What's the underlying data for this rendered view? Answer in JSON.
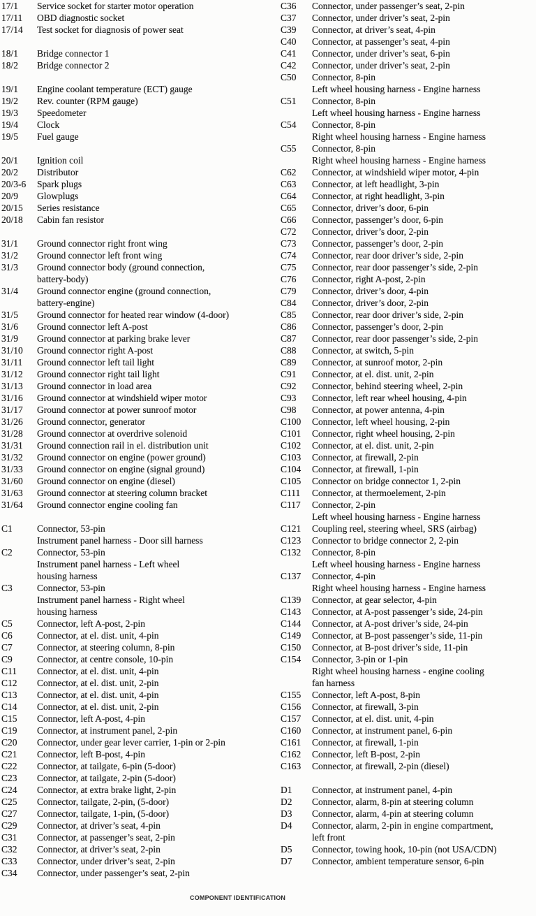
{
  "footer": {
    "title": "COMPONENT IDENTIFICATION"
  },
  "columns": [
    {
      "name": "left",
      "entries": [
        {
          "code": "17/1",
          "lines": [
            "Service socket for starter motor operation"
          ]
        },
        {
          "code": "17/11",
          "lines": [
            "OBD diagnostic socket"
          ]
        },
        {
          "code": "17/14",
          "lines": [
            "Test socket for diagnosis of power seat"
          ]
        },
        {
          "code": "18/1",
          "gap": true,
          "lines": [
            "Bridge connector 1"
          ]
        },
        {
          "code": "18/2",
          "lines": [
            "Bridge connector 2"
          ]
        },
        {
          "code": "19/1",
          "gap": true,
          "lines": [
            "Engine coolant temperature (ECT) gauge"
          ]
        },
        {
          "code": "19/2",
          "lines": [
            "Rev. counter (RPM gauge)"
          ]
        },
        {
          "code": "19/3",
          "lines": [
            "Speedometer"
          ]
        },
        {
          "code": "19/4",
          "lines": [
            "Clock"
          ]
        },
        {
          "code": "19/5",
          "lines": [
            "Fuel gauge"
          ]
        },
        {
          "code": "20/1",
          "gap": true,
          "lines": [
            "Ignition coil"
          ]
        },
        {
          "code": "20/2",
          "lines": [
            "Distributor"
          ]
        },
        {
          "code": "20/3-6",
          "lines": [
            "Spark plugs"
          ]
        },
        {
          "code": "20/9",
          "lines": [
            "Glowplugs"
          ]
        },
        {
          "code": "20/15",
          "lines": [
            "Series resistance"
          ]
        },
        {
          "code": "20/18",
          "lines": [
            "Cabin fan resistor"
          ]
        },
        {
          "code": "31/1",
          "gap": true,
          "lines": [
            "Ground connector right front wing"
          ]
        },
        {
          "code": "31/2",
          "lines": [
            "Ground connector left front wing"
          ]
        },
        {
          "code": "31/3",
          "lines": [
            "Ground connector body (ground connection,",
            "battery-body)"
          ]
        },
        {
          "code": "31/4",
          "lines": [
            "Ground connector engine (ground connection,",
            "battery-engine)"
          ]
        },
        {
          "code": "31/5",
          "lines": [
            "Ground connector for heated rear window (4-door)"
          ]
        },
        {
          "code": "31/6",
          "lines": [
            "Ground connector left A-post"
          ]
        },
        {
          "code": "31/9",
          "lines": [
            "Ground connector at parking brake lever"
          ]
        },
        {
          "code": "31/10",
          "lines": [
            "Ground connector right A-post"
          ]
        },
        {
          "code": "31/11",
          "lines": [
            "Ground connector left tail light"
          ]
        },
        {
          "code": "31/12",
          "lines": [
            "Ground connector right tail light"
          ]
        },
        {
          "code": "31/13",
          "lines": [
            "Ground connector in load area"
          ]
        },
        {
          "code": "31/16",
          "lines": [
            "Ground connector at windshield wiper motor"
          ]
        },
        {
          "code": "31/17",
          "lines": [
            "Ground connector at power sunroof motor"
          ]
        },
        {
          "code": "31/26",
          "lines": [
            "Ground connector, generator"
          ]
        },
        {
          "code": "31/28",
          "lines": [
            "Ground connector at overdrive solenoid"
          ]
        },
        {
          "code": "31/31",
          "lines": [
            "Ground connection rail in el. distribution unit"
          ]
        },
        {
          "code": "31/32",
          "lines": [
            "Ground connector on engine (power ground)"
          ]
        },
        {
          "code": "31/33",
          "lines": [
            "Ground connector on engine (signal ground)"
          ]
        },
        {
          "code": "31/60",
          "lines": [
            "Ground connector on engine (diesel)"
          ]
        },
        {
          "code": "31/63",
          "lines": [
            "Ground connector at steering column bracket"
          ]
        },
        {
          "code": "31/64",
          "lines": [
            "Ground connector engine cooling fan"
          ]
        },
        {
          "code": "C1",
          "gap": true,
          "lines": [
            "Connector, 53-pin",
            "Instrument panel harness - Door sill harness"
          ]
        },
        {
          "code": "C2",
          "lines": [
            "Connector, 53-pin",
            "Instrument panel harness - Left wheel",
            "housing harness"
          ]
        },
        {
          "code": "C3",
          "lines": [
            "Connector, 53-pin",
            "Instrument panel harness - Right wheel",
            "housing harness"
          ]
        },
        {
          "code": "C5",
          "lines": [
            "Connector, left A-post, 2-pin"
          ]
        },
        {
          "code": "C6",
          "lines": [
            "Connector, at el. dist. unit, 4-pin"
          ]
        },
        {
          "code": "C7",
          "lines": [
            "Connector, at steering column, 8-pin"
          ]
        },
        {
          "code": "C9",
          "lines": [
            "Connector, at centre console, 10-pin"
          ]
        },
        {
          "code": "C11",
          "lines": [
            "Connector, at el. dist. unit, 4-pin"
          ]
        },
        {
          "code": "C12",
          "lines": [
            "Connector, at el. dist. unit, 2-pin"
          ]
        },
        {
          "code": "C13",
          "lines": [
            "Connector, at el. dist. unit, 4-pin"
          ]
        },
        {
          "code": "C14",
          "lines": [
            "Connector, at el. dist. unit, 2-pin"
          ]
        },
        {
          "code": "C15",
          "lines": [
            "Connector, left A-post, 4-pin"
          ]
        },
        {
          "code": "C19",
          "lines": [
            "Connector, at instrument panel, 2-pin"
          ]
        },
        {
          "code": "C20",
          "lines": [
            "Connector, under gear lever carrier, 1-pin or 2-pin"
          ]
        },
        {
          "code": "C21",
          "lines": [
            "Connector, left B-post, 4-pin"
          ]
        },
        {
          "code": "C22",
          "lines": [
            "Connector, at tailgate, 6-pin (5-door)"
          ]
        },
        {
          "code": "C23",
          "lines": [
            "Connector, at tailgate, 2-pin (5-door)"
          ]
        },
        {
          "code": "C24",
          "lines": [
            "Connector, at extra brake light, 2-pin"
          ]
        },
        {
          "code": "C25",
          "lines": [
            "Connector, tailgate, 2-pin, (5-door)"
          ]
        },
        {
          "code": "C27",
          "lines": [
            "Connector, tailgate, 1-pin, (5-door)"
          ]
        },
        {
          "code": "C29",
          "lines": [
            "Connector, at driver’s seat, 4-pin"
          ]
        },
        {
          "code": "C31",
          "lines": [
            "Connector, at passenger’s seat, 2-pin"
          ]
        },
        {
          "code": "C32",
          "lines": [
            "Connector, at driver’s seat, 2-pin"
          ]
        },
        {
          "code": "C33",
          "lines": [
            "Connector, under driver’s seat, 2-pin"
          ]
        },
        {
          "code": "C34",
          "lines": [
            "Connector, under passenger’s seat, 2-pin"
          ]
        }
      ]
    },
    {
      "name": "right",
      "entries": [
        {
          "code": "C36",
          "lines": [
            "Connector, under passenger’s seat, 2-pin"
          ]
        },
        {
          "code": "C37",
          "lines": [
            "Connector, under driver’s seat, 2-pin"
          ]
        },
        {
          "code": "C39",
          "lines": [
            "Connector, at driver’s seat, 4-pin"
          ]
        },
        {
          "code": "C40",
          "lines": [
            "Connector, at passenger’s seat, 4-pin"
          ]
        },
        {
          "code": "C41",
          "lines": [
            "Connector, under driver’s seat, 6-pin"
          ]
        },
        {
          "code": "C42",
          "lines": [
            "Connector, under driver’s seat, 2-pin"
          ]
        },
        {
          "code": "C50",
          "lines": [
            "Connector, 8-pin",
            "Left wheel housing harness - Engine harness"
          ]
        },
        {
          "code": "C51",
          "lines": [
            "Connector, 8-pin",
            "Left wheel housing harness - Engine harness"
          ]
        },
        {
          "code": "C54",
          "lines": [
            "Connector, 8-pin",
            "Right wheel housing harness - Engine harness"
          ]
        },
        {
          "code": "C55",
          "lines": [
            "Connector, 8-pin",
            "Right wheel housing harness - Engine harness"
          ]
        },
        {
          "code": "C62",
          "lines": [
            "Connector, at windshield wiper motor, 4-pin"
          ]
        },
        {
          "code": "C63",
          "lines": [
            "Connector, at left headlight, 3-pin"
          ]
        },
        {
          "code": "C64",
          "lines": [
            "Connector, at right headlight, 3-pin"
          ]
        },
        {
          "code": "C65",
          "lines": [
            "Connector, driver’s door, 6-pin"
          ]
        },
        {
          "code": "C66",
          "lines": [
            "Connector, passenger’s door, 6-pin"
          ]
        },
        {
          "code": "C72",
          "lines": [
            "Connector, driver’s door, 2-pin"
          ]
        },
        {
          "code": "C73",
          "lines": [
            "Connector, passenger’s door, 2-pin"
          ]
        },
        {
          "code": "C74",
          "lines": [
            "Connector, rear door driver’s side, 2-pin"
          ]
        },
        {
          "code": "C75",
          "lines": [
            "Connector, rear door passenger’s side, 2-pin"
          ]
        },
        {
          "code": "C76",
          "lines": [
            "Connector, right A-post, 2-pin"
          ]
        },
        {
          "code": "C79",
          "lines": [
            "Connector, driver’s door, 4-pin"
          ]
        },
        {
          "code": "C84",
          "lines": [
            "Connector, driver’s door, 2-pin"
          ]
        },
        {
          "code": "C85",
          "lines": [
            "Connector, rear door driver’s side, 2-pin"
          ]
        },
        {
          "code": "C86",
          "lines": [
            "Connector, passenger’s door, 2-pin"
          ]
        },
        {
          "code": "C87",
          "lines": [
            "Connector, rear door passenger’s side, 2-pin"
          ]
        },
        {
          "code": "C88",
          "lines": [
            "Connector, at switch, 5-pin"
          ]
        },
        {
          "code": "C89",
          "lines": [
            "Connector, at sunroof motor, 2-pin"
          ]
        },
        {
          "code": "C91",
          "lines": [
            "Connector, at el. dist. unit, 2-pin"
          ]
        },
        {
          "code": "C92",
          "lines": [
            "Connector, behind steering wheel, 2-pin"
          ]
        },
        {
          "code": "C93",
          "lines": [
            "Connector, left rear wheel housing, 4-pin"
          ]
        },
        {
          "code": "C98",
          "lines": [
            "Connector, at power antenna, 4-pin"
          ]
        },
        {
          "code": "C100",
          "lines": [
            "Connector, left wheel housing, 2-pin"
          ]
        },
        {
          "code": "C101",
          "lines": [
            "Connector, right wheel housing, 2-pin"
          ]
        },
        {
          "code": "C102",
          "lines": [
            "Connector, at el. dist. unit, 2-pin"
          ]
        },
        {
          "code": "C103",
          "lines": [
            "Connector, at firewall, 2-pin"
          ]
        },
        {
          "code": "C104",
          "lines": [
            "Connector, at firewall, 1-pin"
          ]
        },
        {
          "code": "C105",
          "lines": [
            "Connector on bridge connector 1, 2-pin"
          ]
        },
        {
          "code": "C111",
          "lines": [
            "Connector, at thermoelement, 2-pin"
          ]
        },
        {
          "code": "C117",
          "lines": [
            "Connector, 2-pin",
            "Left wheel housing harness - Engine harness"
          ]
        },
        {
          "code": "C121",
          "lines": [
            "Coupling reel, steering wheel, SRS (airbag)"
          ]
        },
        {
          "code": "C123",
          "lines": [
            "Connector to bridge connector 2, 2-pin"
          ]
        },
        {
          "code": "C132",
          "lines": [
            "Connector, 8-pin",
            "Left wheel housing harness - Engine harness"
          ]
        },
        {
          "code": "C137",
          "lines": [
            "Connector, 4-pin",
            "Right wheel housing harness - Engine harness"
          ]
        },
        {
          "code": "C139",
          "lines": [
            "Connector, at gear selector, 4-pin"
          ]
        },
        {
          "code": "C143",
          "lines": [
            "Connector, at A-post passenger’s side, 24-pin"
          ]
        },
        {
          "code": "C144",
          "lines": [
            "Connector, at A-post driver’s side, 24-pin"
          ]
        },
        {
          "code": "C149",
          "lines": [
            "Connector, at B-post passenger’s side, 11-pin"
          ]
        },
        {
          "code": "C150",
          "lines": [
            "Connector, at B-post driver’s side, 11-pin"
          ]
        },
        {
          "code": "C154",
          "lines": [
            "Connector, 3-pin or 1-pin",
            "Right wheel housing harness - engine cooling",
            "fan harness"
          ]
        },
        {
          "code": "C155",
          "lines": [
            "Connector, left A-post, 8-pin"
          ]
        },
        {
          "code": "C156",
          "lines": [
            "Connector, at firewall, 3-pin"
          ]
        },
        {
          "code": "C157",
          "lines": [
            "Connector, at el. dist. unit, 4-pin"
          ]
        },
        {
          "code": "C160",
          "lines": [
            "Connector, at instrument panel, 6-pin"
          ]
        },
        {
          "code": "C161",
          "lines": [
            "Connector, at firewall, 1-pin"
          ]
        },
        {
          "code": "C162",
          "lines": [
            "Connector, left B-post, 2-pin"
          ]
        },
        {
          "code": "C163",
          "lines": [
            "Connector, at firewall, 2-pin (diesel)"
          ]
        },
        {
          "code": "D1",
          "gap": true,
          "lines": [
            "Connector, at instrument panel, 4-pin"
          ]
        },
        {
          "code": "D2",
          "lines": [
            "Connector, alarm, 8-pin at steering column"
          ]
        },
        {
          "code": "D3",
          "lines": [
            "Connector, alarm, 4-pin at steering column"
          ]
        },
        {
          "code": "D4",
          "lines": [
            "Connector, alarm, 2-pin in engine compartment,",
            "left front"
          ]
        },
        {
          "code": "D5",
          "lines": [
            "Connector, towing hook, 10-pin (not USA/CDN)"
          ]
        },
        {
          "code": "D7",
          "lines": [
            "Connector, ambient temperature sensor, 6-pin"
          ]
        }
      ]
    }
  ]
}
